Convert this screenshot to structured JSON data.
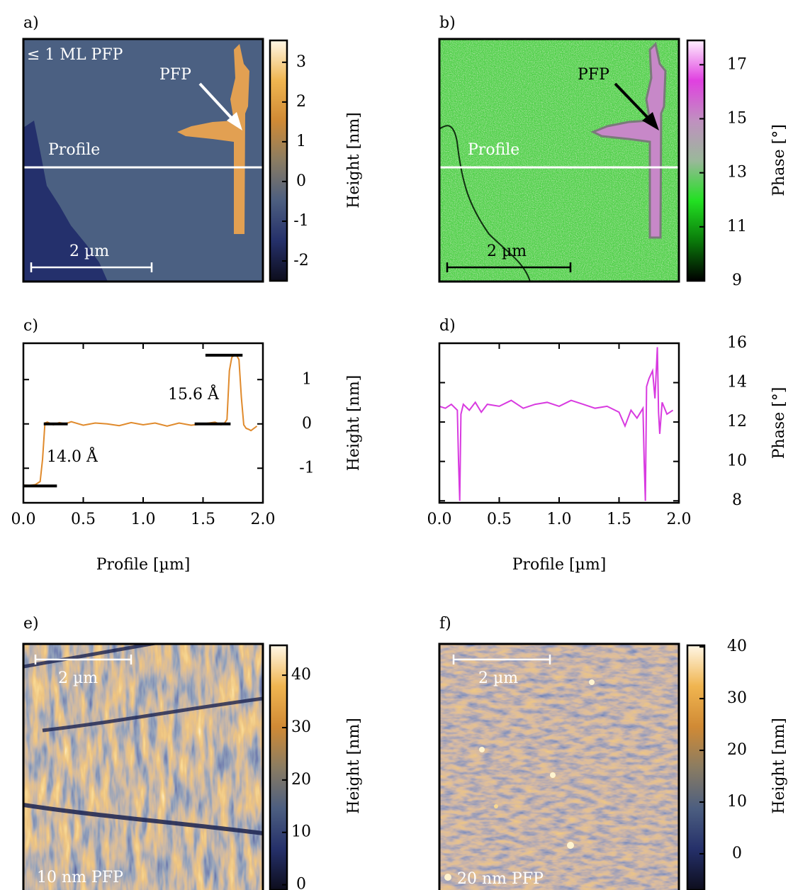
{
  "chart_data": [
    {
      "type": "heatmap",
      "panel_label": "a)",
      "annotations": [
        "≤ 1 ML PFP",
        "PFP",
        "Profile"
      ],
      "scale_bar": "2 µm",
      "colorbar_label": "Height [nm]",
      "clim": [
        -2.5,
        3.55
      ],
      "cticks": [
        3,
        2,
        1,
        0,
        -1,
        -2
      ],
      "colors": [
        "#0d0d1c",
        "#25306a",
        "#4c5e80",
        "#8a7c62",
        "#d08a35",
        "#f0b550",
        "#fff7e6"
      ]
    },
    {
      "type": "heatmap",
      "panel_label": "b)",
      "annotations": [
        "PFP",
        "Profile"
      ],
      "scale_bar": "2 µm",
      "colorbar_label": "Phase [°]",
      "clim": [
        9,
        17.9
      ],
      "cticks": [
        9,
        11,
        13,
        15,
        17
      ],
      "colors": [
        "#000000",
        "#0a7a0a",
        "#22e022",
        "#9ab89a",
        "#c090c0",
        "#e040e0",
        "#fff0ff"
      ]
    },
    {
      "type": "line",
      "panel_label": "c)",
      "xlabel": "Profile [µm]",
      "ylabel": "Height [nm]",
      "color": "#e08a2c",
      "x": [
        0,
        0.05,
        0.1,
        0.14,
        0.16,
        0.18,
        0.2,
        0.25,
        0.3,
        0.35,
        0.4,
        0.5,
        0.6,
        0.7,
        0.8,
        0.9,
        1.0,
        1.1,
        1.2,
        1.3,
        1.4,
        1.5,
        1.6,
        1.65,
        1.68,
        1.7,
        1.72,
        1.74,
        1.76,
        1.78,
        1.8,
        1.82,
        1.84,
        1.86,
        1.88,
        1.9,
        1.95
      ],
      "values": [
        -1.38,
        -1.39,
        -1.37,
        -1.3,
        -0.8,
        0.02,
        0.04,
        -0.02,
        0.03,
        0.0,
        0.05,
        -0.03,
        0.02,
        0.0,
        -0.04,
        0.03,
        -0.02,
        0.02,
        -0.05,
        0.02,
        -0.03,
        0.0,
        0.04,
        -0.02,
        0.02,
        0.1,
        1.2,
        1.5,
        1.55,
        1.55,
        1.45,
        0.6,
        -0.02,
        -0.1,
        -0.12,
        -0.15,
        -0.05
      ],
      "xlim": [
        0,
        2
      ],
      "xticks": [
        {
          "value": 0,
          "label": "0.0"
        },
        0.5,
        {
          "value": 1,
          "label": "1.0"
        },
        1.5,
        {
          "value": 2,
          "label": "2.0"
        }
      ],
      "ylim": [
        -1.78,
        1.82
      ],
      "yticks": [
        -1,
        0,
        1
      ],
      "levels": [
        {
          "x": [
            0,
            0.28
          ],
          "y": -1.4
        },
        {
          "x": [
            0.17,
            0.37
          ],
          "y": 0
        },
        {
          "x": [
            1.43,
            1.73
          ],
          "y": 0
        },
        {
          "x": [
            1.52,
            1.83
          ],
          "y": 1.55
        }
      ],
      "annotations": [
        "14.0 Å",
        "15.6 Å"
      ]
    },
    {
      "type": "line",
      "panel_label": "d)",
      "xlabel": "Profile [µm]",
      "ylabel": "Phase [°]",
      "color": "#d83ae0",
      "x": [
        0,
        0.05,
        0.1,
        0.15,
        0.16,
        0.17,
        0.18,
        0.2,
        0.25,
        0.3,
        0.35,
        0.4,
        0.5,
        0.6,
        0.7,
        0.8,
        0.9,
        1.0,
        1.1,
        1.2,
        1.3,
        1.4,
        1.5,
        1.55,
        1.6,
        1.65,
        1.7,
        1.71,
        1.72,
        1.73,
        1.75,
        1.78,
        1.8,
        1.82,
        1.83,
        1.84,
        1.86,
        1.88,
        1.9,
        1.95
      ],
      "values": [
        12.8,
        12.7,
        12.9,
        12.6,
        10,
        8,
        12.4,
        12.9,
        12.6,
        13,
        12.5,
        12.9,
        12.8,
        13.1,
        12.7,
        12.9,
        13,
        12.8,
        13.1,
        12.9,
        12.7,
        12.8,
        12.5,
        11.8,
        12.6,
        12.2,
        12.7,
        10,
        8,
        13.8,
        14.2,
        14.6,
        13.2,
        15.8,
        12.5,
        11.4,
        13,
        12.7,
        12.4,
        12.6
      ],
      "xlim": [
        0,
        2
      ],
      "xticks": [
        {
          "value": 0,
          "label": "0.0"
        },
        0.5,
        {
          "value": 1,
          "label": "1.0"
        },
        1.5,
        {
          "value": 2,
          "label": "2.0"
        }
      ],
      "ylim": [
        7.9,
        16
      ],
      "yticks": [
        8,
        10,
        12,
        14,
        16
      ]
    },
    {
      "type": "heatmap",
      "panel_label": "e)",
      "annotations": [
        "10 nm PFP"
      ],
      "scale_bar": "2 µm",
      "colorbar_label": "Height [nm]",
      "clim": [
        -1,
        45.7
      ],
      "cticks": [
        0,
        10,
        20,
        30,
        40
      ],
      "colors": [
        "#0d0d1c",
        "#25306a",
        "#4c5e80",
        "#8a7c62",
        "#d08a35",
        "#f0b550",
        "#fff7e6"
      ]
    },
    {
      "type": "heatmap",
      "panel_label": "f)",
      "annotations": [
        "20 nm PFP"
      ],
      "scale_bar": "2 µm",
      "colorbar_label": "Height [nm]",
      "clim": [
        -7,
        40.3
      ],
      "cticks": [
        0,
        10,
        20,
        30,
        40
      ],
      "colors": [
        "#0d0d1c",
        "#25306a",
        "#4c5e80",
        "#8a7c62",
        "#d08a35",
        "#f0b550",
        "#fff7e6"
      ]
    }
  ]
}
